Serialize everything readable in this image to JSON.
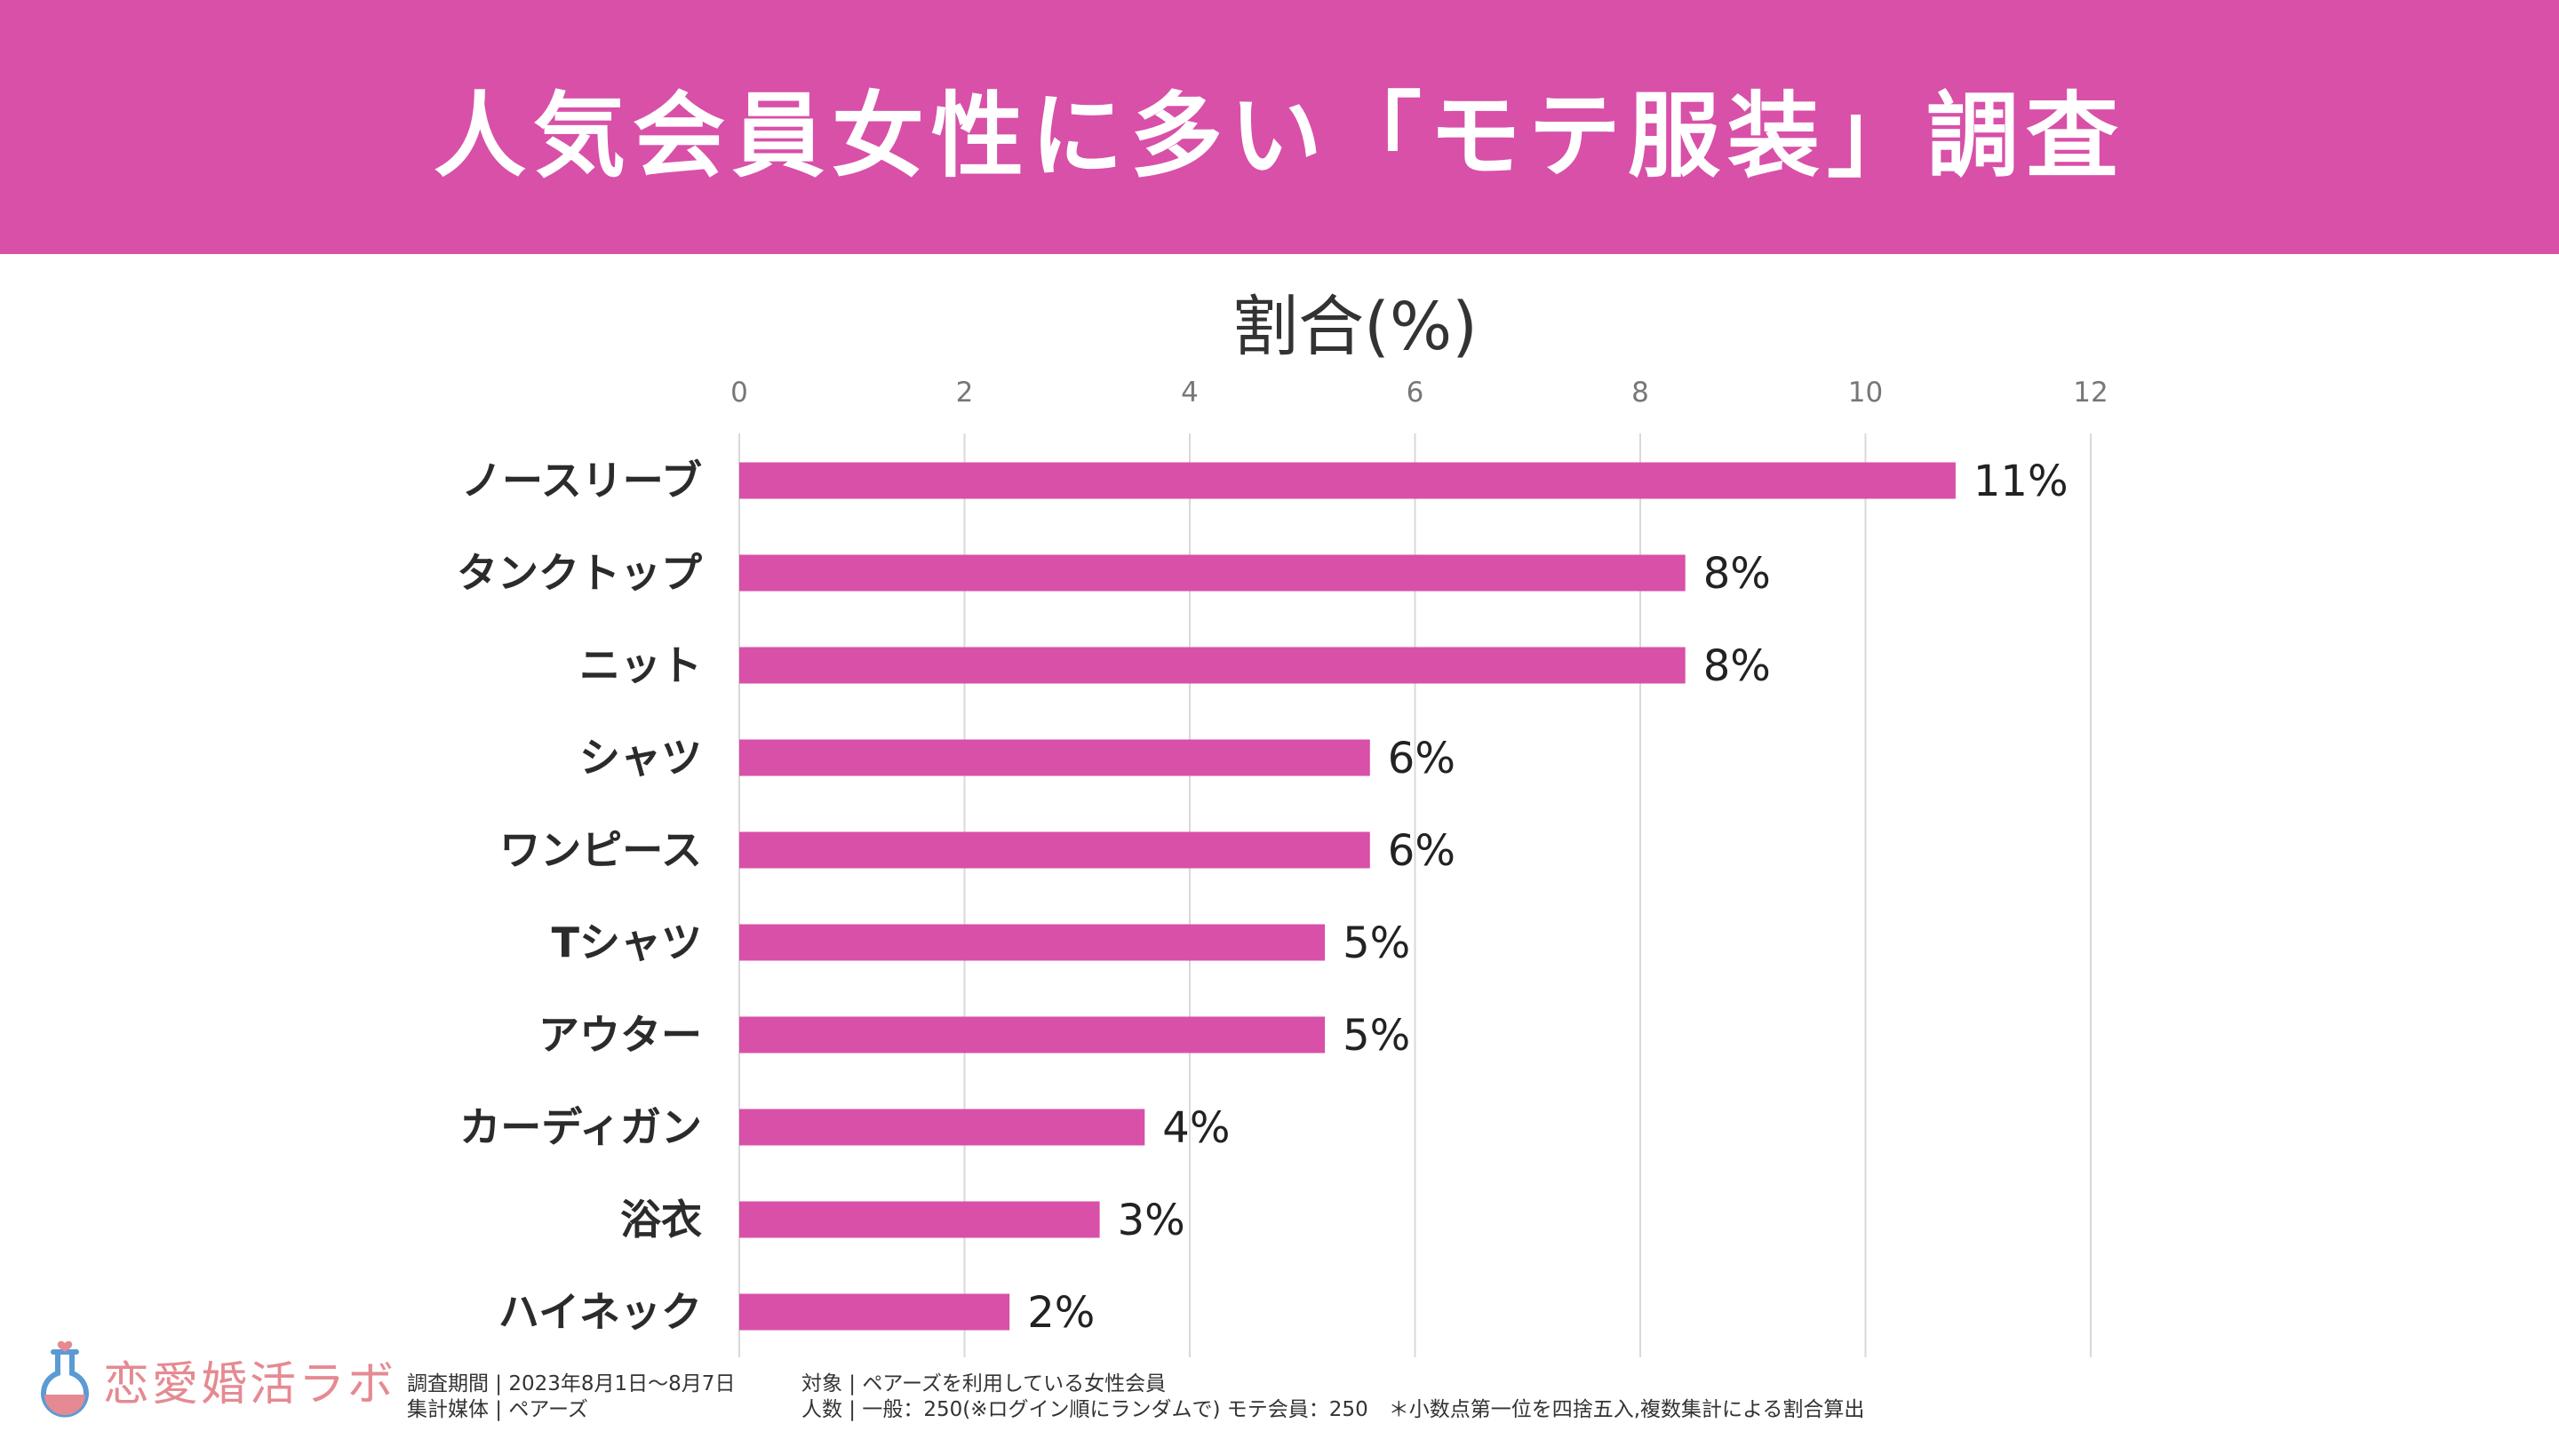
{
  "header": {
    "title": "人気会員女性に多い「モテ服装」調査"
  },
  "chart_data": {
    "type": "bar",
    "orientation": "horizontal",
    "title": "割合(%)",
    "categories": [
      "ノースリーブ",
      "タンクトップ",
      "ニット",
      "シャツ",
      "ワンピース",
      "Tシャツ",
      "アウター",
      "カーディガン",
      "浴衣",
      "ハイネック"
    ],
    "values": [
      10.8,
      8.4,
      8.4,
      5.6,
      5.6,
      5.2,
      5.2,
      3.6,
      3.2,
      2.4
    ],
    "data_labels": [
      "11%",
      "8%",
      "8%",
      "6%",
      "6%",
      "5%",
      "5%",
      "4%",
      "3%",
      "2%"
    ],
    "xlim": [
      0,
      12
    ],
    "ticks": [
      0,
      2,
      4,
      6,
      8,
      10,
      12
    ],
    "tick_labels": [
      "0",
      "2",
      "4",
      "6",
      "8",
      "10",
      "12"
    ],
    "grid": true,
    "bar_color": "#d850a8",
    "grid_color": "#d9d9d9"
  },
  "logo": {
    "text": "恋愛婚活ラボ",
    "color": "#e58a92",
    "accent": "#5b9bd5"
  },
  "footnotes": {
    "period": "調査期間 | 2023年8月1日～8月7日",
    "media": "集計媒体 | ペアーズ",
    "target": "対象 | ペアーズを利用している女性会員",
    "count": "人数 | 一般：250(※ログイン順にランダムで) モテ会員：250　＊小数点第一位を四捨五入,複数集計による割合算出"
  }
}
